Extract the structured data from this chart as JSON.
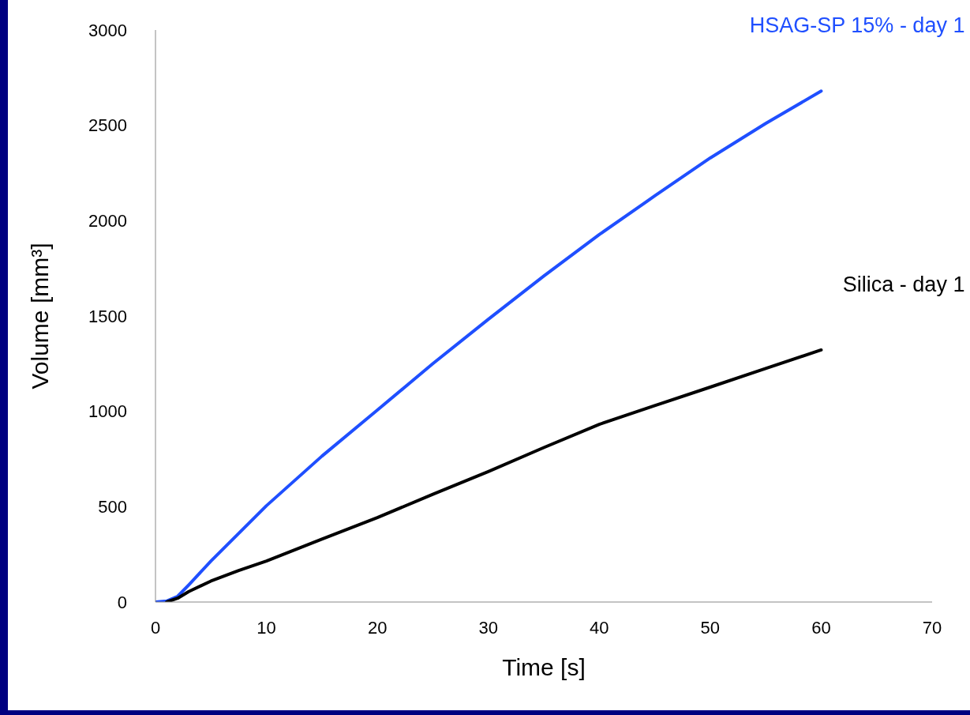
{
  "chart_data": {
    "type": "line",
    "xlabel": "Time [s]",
    "ylabel": "Volume [mm³]",
    "x": [
      0,
      1,
      2,
      3,
      5,
      7.5,
      10,
      15,
      20,
      25,
      30,
      35,
      40,
      45,
      50,
      55,
      60
    ],
    "series": [
      {
        "name": "HSAG-SP 15% - day 1",
        "color": "#1f4fff",
        "values": [
          0,
          5,
          30,
          90,
          215,
          360,
          505,
          765,
          1007,
          1250,
          1483,
          1710,
          1927,
          2130,
          2329,
          2510,
          2680
        ]
      },
      {
        "name": "Silica - day 1",
        "color": "#000000",
        "values": [
          null,
          0,
          20,
          55,
          110,
          165,
          215,
          330,
          443,
          565,
          684,
          810,
          932,
          1030,
          1127,
          1225,
          1322
        ]
      }
    ],
    "xlim": [
      0,
      70
    ],
    "xticks": [
      0,
      10,
      20,
      30,
      40,
      50,
      60,
      70
    ],
    "ylim": [
      0,
      3000
    ],
    "yticks": [
      0,
      500,
      1000,
      1500,
      2000,
      2500,
      3000
    ],
    "grid": false,
    "legend": false,
    "marker": "none",
    "line_style": "solid"
  }
}
